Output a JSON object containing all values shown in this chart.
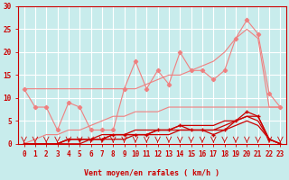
{
  "xlabel": "Vent moyen/en rafales ( km/h )",
  "background_color": "#c8ecec",
  "grid_color": "#ffffff",
  "x": [
    0,
    1,
    2,
    3,
    4,
    5,
    6,
    7,
    8,
    9,
    10,
    11,
    12,
    13,
    14,
    15,
    16,
    17,
    18,
    19,
    20,
    21,
    22,
    23
  ],
  "rafales_jagged": [
    12,
    8,
    8,
    3,
    9,
    8,
    3,
    3,
    3,
    12,
    18,
    12,
    16,
    13,
    20,
    16,
    16,
    14,
    16,
    23,
    27,
    24,
    11,
    8
  ],
  "upper_straight": [
    12,
    12,
    12,
    12,
    12,
    12,
    12,
    12,
    12,
    12,
    12,
    13,
    14,
    15,
    15,
    16,
    17,
    18,
    20,
    23,
    25,
    23,
    8,
    8
  ],
  "lower_straight": [
    0,
    1,
    2,
    2,
    3,
    3,
    4,
    5,
    6,
    6,
    7,
    7,
    7,
    8,
    8,
    8,
    8,
    8,
    8,
    8,
    8,
    8,
    8,
    8
  ],
  "moyen_jagged": [
    0,
    0,
    0,
    0,
    1,
    1,
    1,
    1,
    2,
    2,
    2,
    2,
    3,
    3,
    4,
    3,
    3,
    2,
    3,
    5,
    7,
    6,
    1,
    0
  ],
  "moyen_upper": [
    0,
    0,
    0,
    0,
    1,
    1,
    1,
    2,
    2,
    2,
    3,
    3,
    3,
    3,
    4,
    4,
    4,
    4,
    5,
    5,
    6,
    6,
    1,
    0
  ],
  "moyen_lower": [
    0,
    0,
    0,
    0,
    0,
    0,
    1,
    1,
    1,
    1,
    2,
    2,
    2,
    2,
    3,
    3,
    3,
    3,
    3,
    4,
    5,
    4,
    1,
    0
  ],
  "moyen_trend": [
    0,
    0,
    0,
    0,
    1,
    1,
    1,
    1,
    2,
    2,
    2,
    2,
    3,
    3,
    3,
    3,
    3,
    3,
    4,
    5,
    6,
    5,
    1,
    0
  ],
  "color_light": "#f08080",
  "color_dark": "#cc0000",
  "ylim": [
    0,
    30
  ],
  "xlim": [
    -0.5,
    23.5
  ],
  "yticks": [
    0,
    5,
    10,
    15,
    20,
    25,
    30
  ],
  "xticks": [
    0,
    1,
    2,
    3,
    4,
    5,
    6,
    7,
    8,
    9,
    10,
    11,
    12,
    13,
    14,
    15,
    16,
    17,
    18,
    19,
    20,
    21,
    22,
    23
  ],
  "xlabel_fontsize": 6.0,
  "tick_fontsize": 5.5
}
